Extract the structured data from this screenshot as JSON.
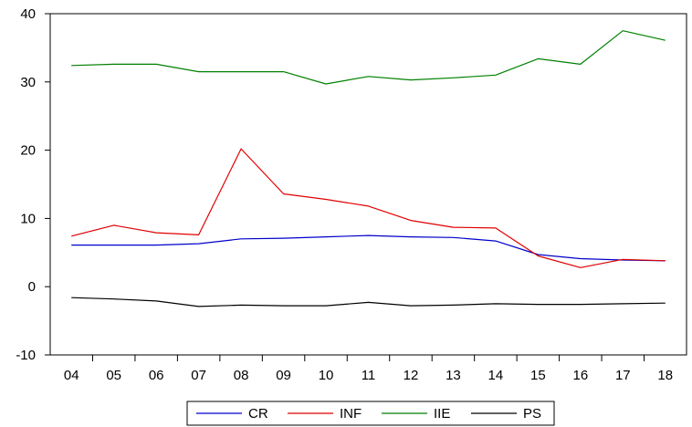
{
  "chart_data": {
    "type": "line",
    "categories": [
      "04",
      "05",
      "06",
      "07",
      "08",
      "09",
      "10",
      "11",
      "12",
      "13",
      "14",
      "15",
      "16",
      "17",
      "18"
    ],
    "ylim": [
      -10,
      40
    ],
    "yticks": [
      -10,
      0,
      10,
      20,
      30,
      40
    ],
    "grid": false,
    "legend_position": "bottom-center",
    "series": [
      {
        "name": "CR",
        "color": "#0000cc",
        "values": [
          6.1,
          6.1,
          6.1,
          6.3,
          7.0,
          7.1,
          7.3,
          7.5,
          7.3,
          7.2,
          6.7,
          4.7,
          4.1,
          3.9,
          3.8
        ]
      },
      {
        "name": "INF",
        "color": "#e00000",
        "values": [
          7.4,
          9.0,
          7.9,
          7.6,
          20.2,
          13.6,
          12.8,
          11.8,
          9.7,
          8.7,
          8.6,
          4.5,
          2.8,
          4.0,
          3.8
        ]
      },
      {
        "name": "IIE",
        "color": "#008000",
        "values": [
          32.4,
          32.6,
          32.6,
          31.5,
          31.5,
          31.5,
          29.7,
          30.8,
          30.3,
          30.6,
          31.0,
          33.4,
          32.6,
          37.5,
          36.1
        ]
      },
      {
        "name": "PS",
        "color": "#000000",
        "values": [
          -1.6,
          -1.8,
          -2.1,
          -2.9,
          -2.7,
          -2.8,
          -2.8,
          -2.3,
          -2.8,
          -2.7,
          -2.5,
          -2.6,
          -2.6,
          -2.5,
          -2.4
        ]
      }
    ]
  }
}
